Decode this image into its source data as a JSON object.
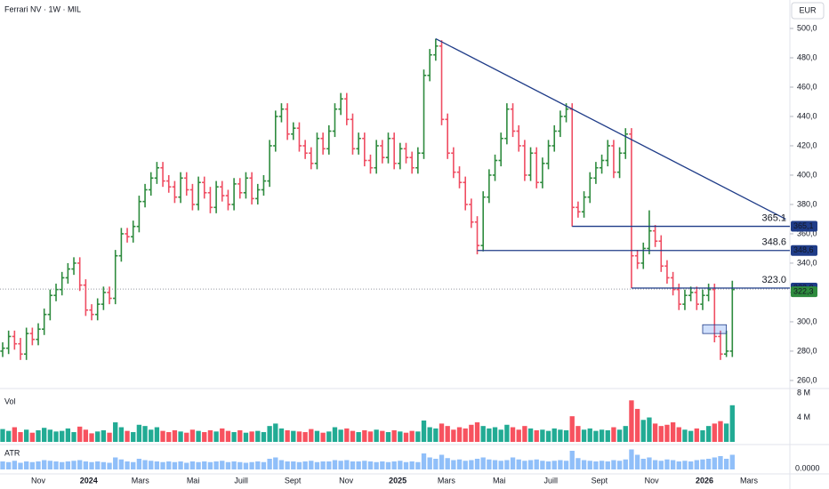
{
  "header": {
    "title": "Ferrari NV · 1W · MIL",
    "currency": "EUR"
  },
  "chart_data": {
    "type": "ohlc",
    "colors": {
      "up": "#2e8b3e",
      "down": "#ef4d62"
    },
    "bars": [
      [
        280,
        286,
        276,
        282
      ],
      [
        282,
        294,
        278,
        290
      ],
      [
        290,
        294,
        281,
        285
      ],
      [
        285,
        289,
        274,
        278
      ],
      [
        278,
        296,
        274,
        292
      ],
      [
        292,
        296,
        284,
        288
      ],
      [
        288,
        299,
        284,
        295
      ],
      [
        295,
        309,
        291,
        305
      ],
      [
        305,
        322,
        301,
        318
      ],
      [
        318,
        326,
        314,
        322
      ],
      [
        322,
        334,
        318,
        330
      ],
      [
        330,
        340,
        326,
        336
      ],
      [
        336,
        344,
        332,
        340
      ],
      [
        340,
        344,
        321,
        325
      ],
      [
        325,
        329,
        304,
        308
      ],
      [
        308,
        312,
        301,
        305
      ],
      [
        305,
        316,
        301,
        312
      ],
      [
        312,
        324,
        308,
        320
      ],
      [
        320,
        324,
        312,
        316
      ],
      [
        316,
        349,
        312,
        345
      ],
      [
        345,
        364,
        341,
        360
      ],
      [
        360,
        364,
        354,
        358
      ],
      [
        358,
        369,
        354,
        365
      ],
      [
        365,
        386,
        361,
        382
      ],
      [
        382,
        394,
        378,
        390
      ],
      [
        390,
        402,
        386,
        398
      ],
      [
        398,
        409,
        394,
        405
      ],
      [
        405,
        409,
        392,
        396
      ],
      [
        396,
        400,
        388,
        392
      ],
      [
        392,
        396,
        381,
        385
      ],
      [
        385,
        402,
        381,
        398
      ],
      [
        398,
        402,
        386,
        390
      ],
      [
        390,
        394,
        376,
        380
      ],
      [
        380,
        399,
        376,
        395
      ],
      [
        395,
        399,
        384,
        388
      ],
      [
        388,
        392,
        374,
        378
      ],
      [
        378,
        396,
        374,
        392
      ],
      [
        392,
        396,
        382,
        386
      ],
      [
        386,
        390,
        376,
        380
      ],
      [
        380,
        398,
        376,
        394
      ],
      [
        394,
        398,
        384,
        388
      ],
      [
        388,
        402,
        384,
        398
      ],
      [
        398,
        402,
        380,
        384
      ],
      [
        384,
        394,
        380,
        390
      ],
      [
        390,
        400,
        386,
        396
      ],
      [
        396,
        424,
        392,
        420
      ],
      [
        420,
        444,
        416,
        440
      ],
      [
        440,
        449,
        436,
        445
      ],
      [
        445,
        449,
        424,
        428
      ],
      [
        428,
        436,
        424,
        432
      ],
      [
        432,
        436,
        416,
        420
      ],
      [
        420,
        424,
        411,
        415
      ],
      [
        415,
        419,
        404,
        408
      ],
      [
        408,
        429,
        404,
        425
      ],
      [
        425,
        429,
        414,
        418
      ],
      [
        418,
        434,
        414,
        430
      ],
      [
        430,
        449,
        426,
        445
      ],
      [
        445,
        456,
        441,
        452
      ],
      [
        452,
        456,
        434,
        438
      ],
      [
        438,
        442,
        414,
        418
      ],
      [
        418,
        429,
        414,
        425
      ],
      [
        425,
        429,
        406,
        410
      ],
      [
        410,
        414,
        401,
        405
      ],
      [
        405,
        424,
        401,
        420
      ],
      [
        420,
        424,
        408,
        412
      ],
      [
        412,
        429,
        408,
        425
      ],
      [
        425,
        429,
        404,
        408
      ],
      [
        408,
        422,
        404,
        418
      ],
      [
        418,
        422,
        408,
        412
      ],
      [
        412,
        416,
        401,
        405
      ],
      [
        405,
        419,
        401,
        415
      ],
      [
        415,
        472,
        411,
        468
      ],
      [
        468,
        486,
        464,
        482
      ],
      [
        482,
        493,
        478,
        488
      ],
      [
        488,
        492,
        434,
        438
      ],
      [
        438,
        442,
        411,
        415
      ],
      [
        415,
        419,
        398,
        402
      ],
      [
        402,
        406,
        391,
        395
      ],
      [
        395,
        399,
        376,
        380
      ],
      [
        380,
        384,
        364,
        368
      ],
      [
        368,
        372,
        346,
        352
      ],
      [
        352,
        389,
        348,
        385
      ],
      [
        385,
        404,
        381,
        400
      ],
      [
        400,
        414,
        396,
        410
      ],
      [
        410,
        429,
        406,
        425
      ],
      [
        425,
        449,
        421,
        445
      ],
      [
        445,
        449,
        426,
        430
      ],
      [
        430,
        434,
        416,
        420
      ],
      [
        420,
        424,
        396,
        400
      ],
      [
        400,
        419,
        396,
        415
      ],
      [
        415,
        419,
        391,
        395
      ],
      [
        395,
        412,
        391,
        408
      ],
      [
        408,
        424,
        404,
        420
      ],
      [
        420,
        434,
        416,
        430
      ],
      [
        430,
        444,
        426,
        440
      ],
      [
        440,
        449,
        436,
        445
      ],
      [
        445,
        449,
        365,
        378
      ],
      [
        378,
        382,
        371,
        375
      ],
      [
        375,
        389,
        371,
        385
      ],
      [
        385,
        402,
        381,
        398
      ],
      [
        398,
        409,
        394,
        405
      ],
      [
        405,
        414,
        401,
        410
      ],
      [
        410,
        424,
        406,
        420
      ],
      [
        420,
        424,
        398,
        402
      ],
      [
        402,
        419,
        398,
        415
      ],
      [
        415,
        432,
        411,
        428
      ],
      [
        428,
        432,
        323,
        345
      ],
      [
        345,
        349,
        336,
        340
      ],
      [
        340,
        354,
        336,
        350
      ],
      [
        350,
        376,
        346,
        362
      ],
      [
        362,
        366,
        351,
        355
      ],
      [
        355,
        359,
        334,
        338
      ],
      [
        338,
        342,
        326,
        330
      ],
      [
        330,
        334,
        318,
        322
      ],
      [
        322,
        326,
        308,
        312
      ],
      [
        312,
        322,
        308,
        318
      ],
      [
        318,
        324,
        314,
        320
      ],
      [
        320,
        324,
        308,
        312
      ],
      [
        312,
        322,
        308,
        318
      ],
      [
        318,
        326,
        314,
        322
      ],
      [
        322,
        326,
        286,
        290
      ],
      [
        290,
        294,
        274,
        278
      ],
      [
        278,
        294,
        276,
        280
      ],
      [
        280,
        328,
        276,
        322
      ]
    ],
    "xlim": [
      -0.45,
      132.7
    ],
    "xticks": [
      {
        "value": 6,
        "label": "Nov"
      },
      {
        "value": 14.5,
        "label": "2024"
      },
      {
        "value": 23.2,
        "label": "Mars"
      },
      {
        "value": 32.1,
        "label": "Mai"
      },
      {
        "value": 40.2,
        "label": "Juill"
      },
      {
        "value": 48.9,
        "label": "Sept"
      },
      {
        "value": 57.9,
        "label": "Nov"
      },
      {
        "value": 66.6,
        "label": "2025"
      },
      {
        "value": 74.8,
        "label": "Mars"
      },
      {
        "value": 83.7,
        "label": "Mai"
      },
      {
        "value": 92.4,
        "label": "Juill"
      },
      {
        "value": 100.6,
        "label": "Sept"
      },
      {
        "value": 109.4,
        "label": "Nov"
      },
      {
        "value": 118.3,
        "label": "2026"
      },
      {
        "value": 125.8,
        "label": "Mars"
      }
    ],
    "ylim": [
      254.5,
      519.4
    ],
    "yticks": [
      {
        "value": 260,
        "label": "260,0"
      },
      {
        "value": 280,
        "label": "280,0"
      },
      {
        "value": 300,
        "label": "300,0"
      },
      {
        "value": 320,
        "label": "320,0"
      },
      {
        "value": 340,
        "label": "340,0"
      },
      {
        "value": 360,
        "label": "360,0"
      },
      {
        "value": 380,
        "label": "380,0"
      },
      {
        "value": 400,
        "label": "400,0"
      },
      {
        "value": 420,
        "label": "420,0"
      },
      {
        "value": 440,
        "label": "440,0"
      },
      {
        "value": 460,
        "label": "460,0"
      },
      {
        "value": 480,
        "label": "480,0"
      },
      {
        "value": 500,
        "label": "500,0"
      }
    ],
    "last_price": {
      "value": 322.3,
      "label": "322,3",
      "color": "#2e8b3e"
    },
    "levels": [
      {
        "value": 365.1,
        "label": "365.1",
        "axis_label": "365,1",
        "from": 96,
        "color": "#1f3c88"
      },
      {
        "value": 348.6,
        "label": "348.6",
        "axis_label": "348,6",
        "from": 80,
        "color": "#1f3c88"
      },
      {
        "value": 323.0,
        "label": "323.0",
        "axis_label": "323,0",
        "from": 106,
        "color": "#1f3c88"
      }
    ],
    "trendline": {
      "x": [
        73,
        132
      ],
      "y": [
        493,
        370
      ],
      "color": "#1f3c88"
    },
    "zone": {
      "x": [
        118,
        122
      ],
      "y": [
        292,
        298
      ],
      "color": "#1f3c88"
    },
    "volume": {
      "label": "Vol",
      "ylim": [
        0,
        8.3
      ],
      "yticks": [
        {
          "value": 4,
          "label": "4 M"
        },
        {
          "value": 8,
          "label": "8 M"
        }
      ],
      "colors": {
        "up": "#22ab94",
        "down": "#f7525f"
      },
      "values": [
        2.1,
        1.8,
        2.4,
        1.6,
        2.0,
        1.5,
        1.9,
        2.3,
        2.0,
        1.7,
        1.8,
        2.2,
        1.6,
        2.5,
        2.0,
        1.4,
        1.7,
        1.9,
        1.5,
        3.2,
        2.4,
        1.8,
        1.6,
        2.8,
        2.6,
        2.0,
        2.4,
        1.8,
        1.6,
        1.9,
        1.7,
        1.5,
        2.0,
        1.8,
        1.6,
        1.9,
        1.7,
        2.2,
        1.8,
        1.6,
        1.9,
        1.5,
        1.7,
        1.8,
        1.6,
        2.6,
        3.0,
        2.2,
        1.9,
        1.8,
        1.7,
        1.6,
        2.1,
        1.8,
        1.5,
        1.7,
        2.4,
        2.0,
        2.2,
        1.8,
        1.6,
        1.9,
        1.7,
        2.0,
        1.8,
        1.6,
        1.9,
        1.7,
        1.5,
        1.8,
        1.7,
        3.5,
        2.4,
        2.2,
        3.0,
        2.6,
        2.0,
        2.4,
        2.2,
        2.8,
        3.2,
        2.6,
        2.2,
        2.4,
        2.0,
        2.8,
        2.4,
        2.0,
        2.6,
        2.2,
        1.9,
        2.0,
        1.8,
        2.2,
        2.0,
        1.9,
        4.2,
        2.6,
        2.0,
        2.2,
        1.8,
        2.0,
        1.9,
        2.4,
        2.0,
        2.6,
        6.8,
        5.4,
        3.6,
        4.0,
        3.0,
        2.6,
        2.8,
        3.2,
        2.4,
        2.0,
        1.8,
        2.2,
        1.9,
        2.6,
        3.0,
        3.4,
        3.0,
        6.0
      ]
    },
    "atr": {
      "label": "ATR",
      "ylim": [
        0,
        32
      ],
      "yticks": [
        {
          "value": 0,
          "label": "0.0000"
        }
      ],
      "color": "#90bff9",
      "values": [
        12,
        11,
        13,
        10,
        12,
        11,
        12,
        14,
        13,
        12,
        11,
        12,
        13,
        14,
        12,
        11,
        12,
        11,
        10,
        18,
        15,
        12,
        11,
        16,
        14,
        13,
        12,
        11,
        12,
        11,
        12,
        10,
        12,
        11,
        12,
        11,
        12,
        13,
        11,
        12,
        11,
        10,
        11,
        12,
        11,
        16,
        18,
        14,
        12,
        12,
        11,
        12,
        13,
        11,
        12,
        12,
        14,
        13,
        14,
        12,
        12,
        13,
        12,
        11,
        12,
        11,
        12,
        13,
        11,
        12,
        11,
        24,
        18,
        16,
        22,
        17,
        14,
        15,
        13,
        14,
        16,
        18,
        15,
        14,
        13,
        14,
        18,
        15,
        13,
        14,
        15,
        13,
        12,
        13,
        14,
        13,
        28,
        17,
        14,
        13,
        12,
        13,
        12,
        14,
        13,
        15,
        30,
        22,
        16,
        18,
        14,
        13,
        15,
        14,
        12,
        13,
        12,
        14,
        15,
        16,
        18,
        20,
        16,
        22
      ]
    }
  }
}
